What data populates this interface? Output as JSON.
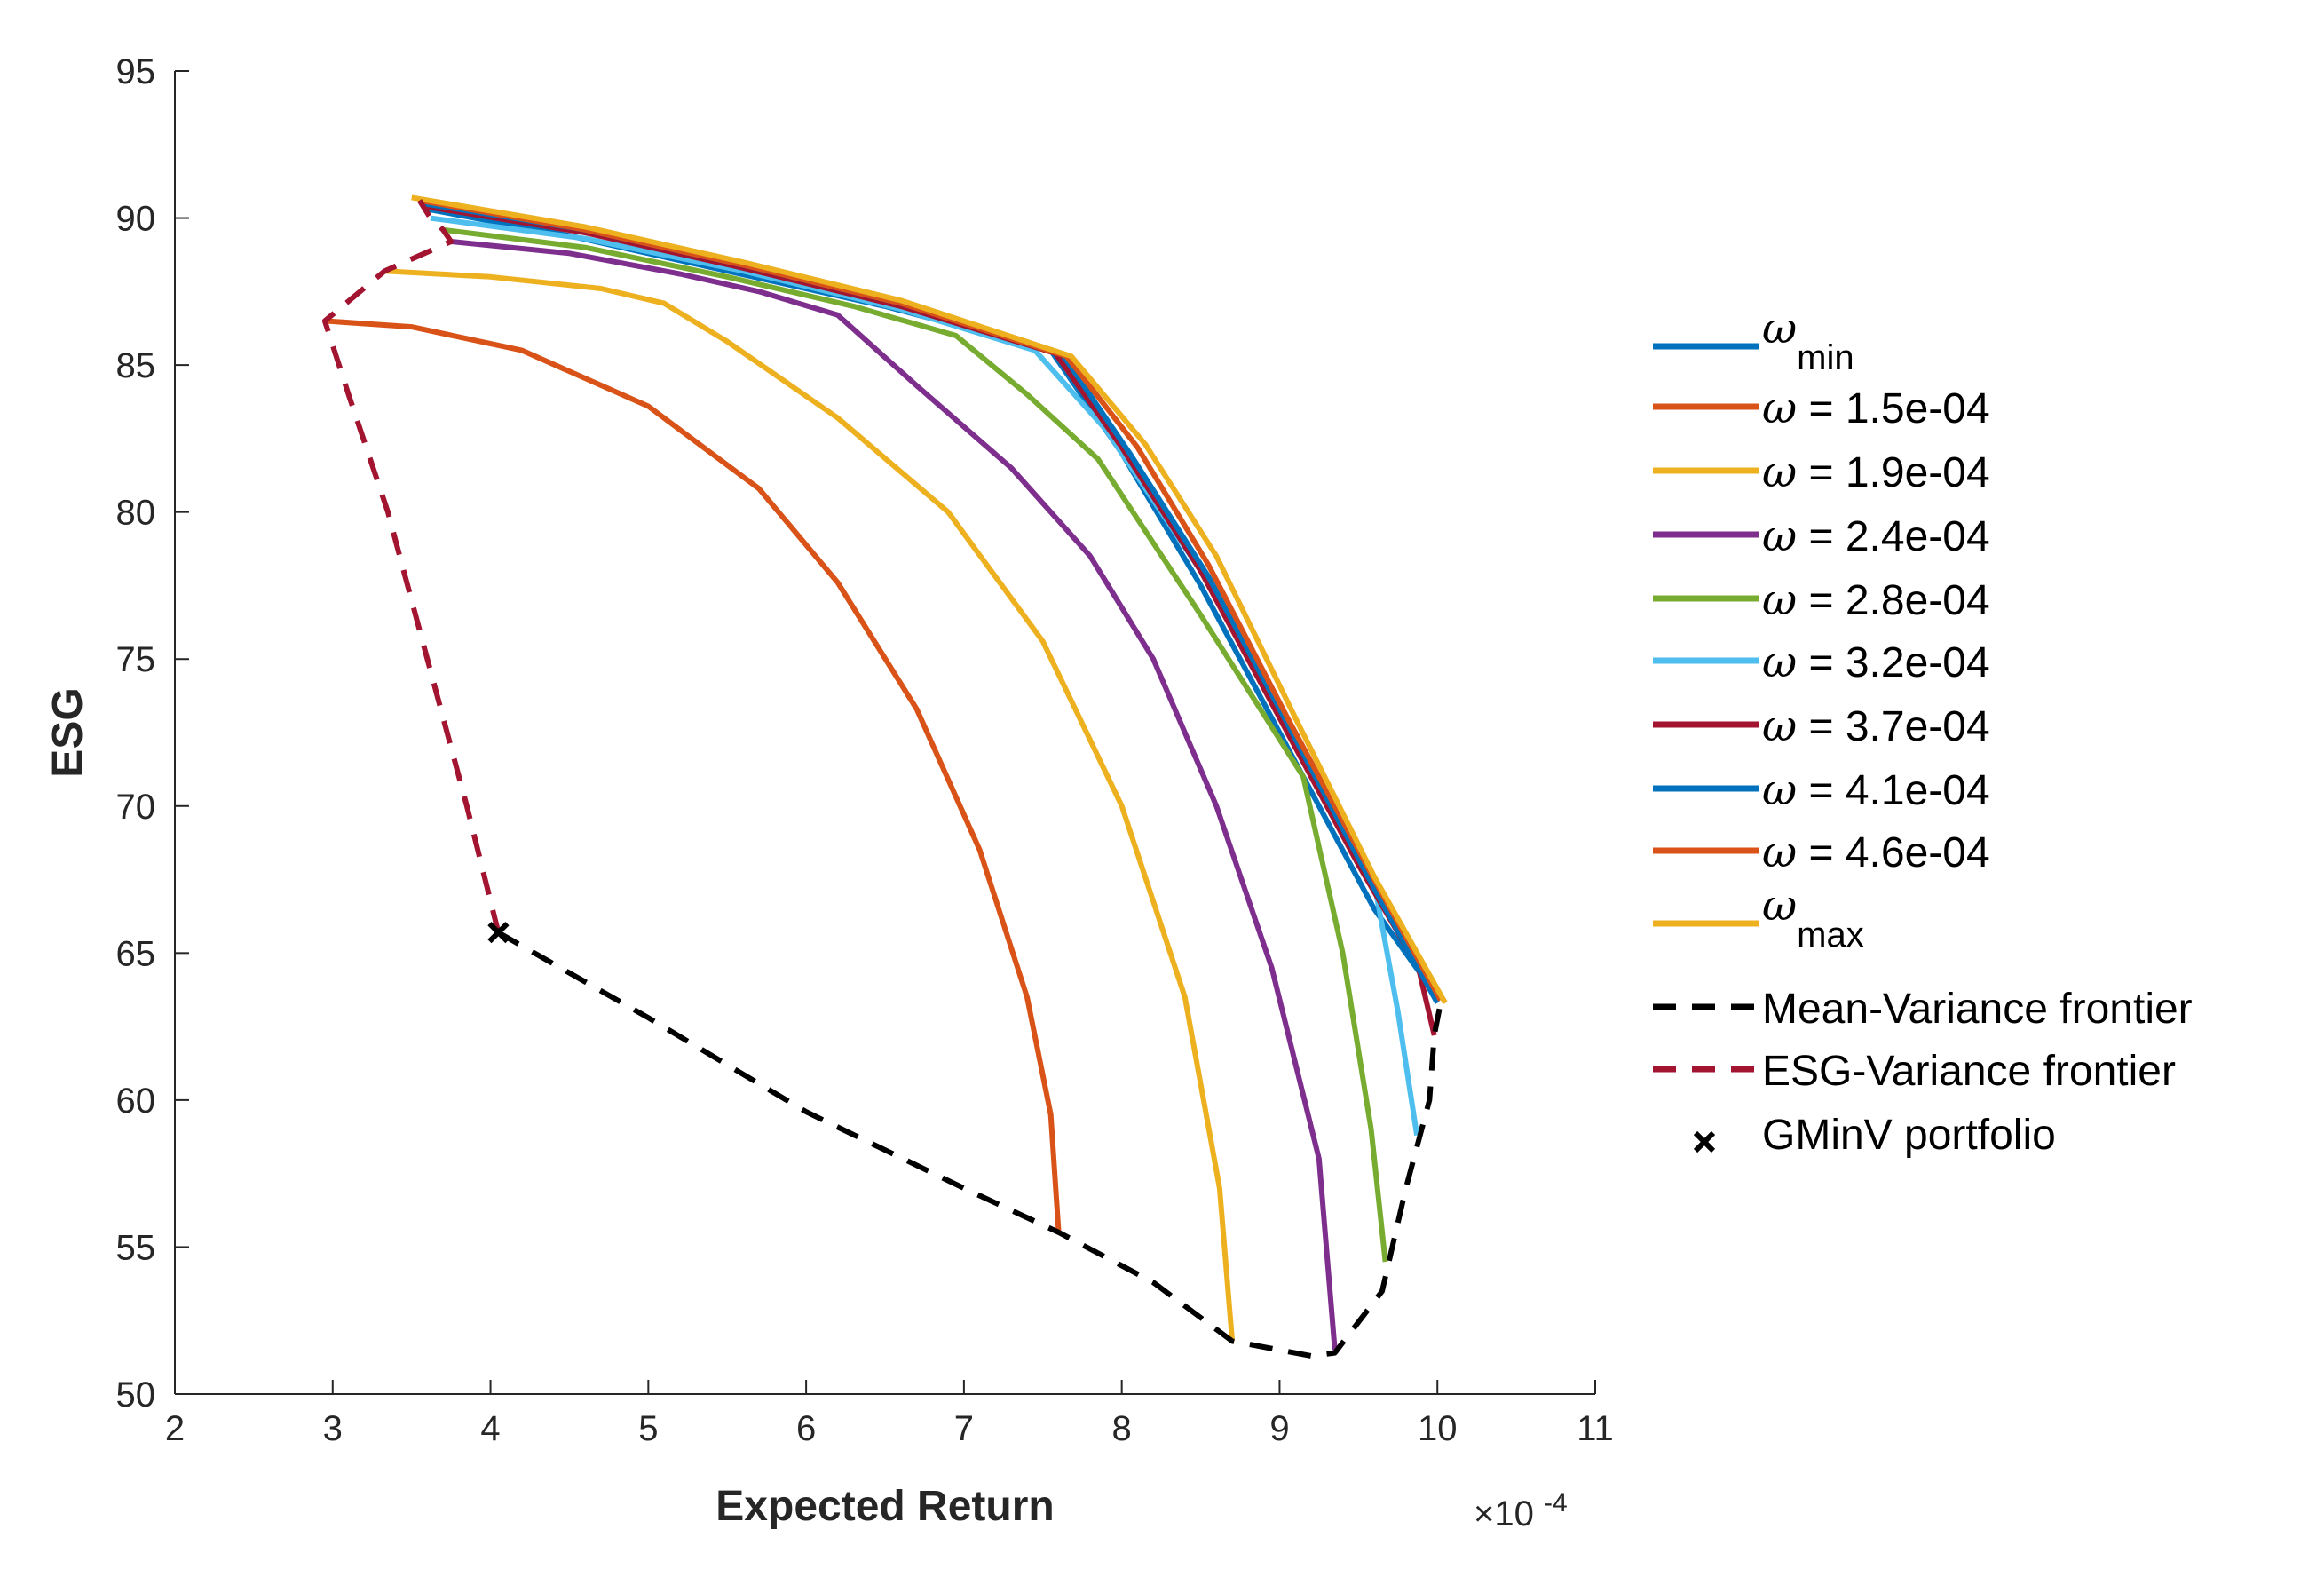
{
  "chart_data": {
    "type": "line",
    "title": "",
    "xlabel": "Expected Return",
    "ylabel": "ESG",
    "x_exponent_label": "×10",
    "x_exponent_power": "-4",
    "xlim": [
      2,
      11
    ],
    "ylim": [
      50,
      95
    ],
    "xticks": [
      2,
      3,
      4,
      5,
      6,
      7,
      8,
      9,
      10,
      11
    ],
    "yticks": [
      50,
      55,
      60,
      65,
      70,
      75,
      80,
      85,
      90,
      95
    ],
    "grid": false,
    "legend_position": "right",
    "series": [
      {
        "name": "ω_min",
        "label_main": "ω",
        "label_sub": "min",
        "color": "#0072BD",
        "style": "solid",
        "points": [
          [
            3.6,
            90.3
          ],
          [
            4.5,
            89.4
          ],
          [
            5.5,
            88.2
          ],
          [
            6.5,
            87.0
          ],
          [
            7.55,
            85.5
          ],
          [
            8.0,
            82.0
          ],
          [
            8.5,
            77.5
          ],
          [
            9.0,
            72.5
          ],
          [
            9.6,
            66.5
          ],
          [
            10.0,
            63.5
          ]
        ]
      },
      {
        "name": "ω = 1.5e-04",
        "label_main": "ω = 1.5e-04",
        "label_sub": "",
        "color": "#D95319",
        "style": "solid",
        "points": [
          [
            2.95,
            86.5
          ],
          [
            3.5,
            86.3
          ],
          [
            4.2,
            85.5
          ],
          [
            5.0,
            83.6
          ],
          [
            5.7,
            80.8
          ],
          [
            6.2,
            77.6
          ],
          [
            6.7,
            73.3
          ],
          [
            7.1,
            68.5
          ],
          [
            7.4,
            63.5
          ],
          [
            7.55,
            59.5
          ],
          [
            7.6,
            55.5
          ]
        ]
      },
      {
        "name": "ω = 1.9e-04",
        "label_main": "ω = 1.9e-04",
        "label_sub": "",
        "color": "#EDB120",
        "style": "solid",
        "points": [
          [
            3.33,
            88.2
          ],
          [
            4.0,
            88.0
          ],
          [
            4.7,
            87.6
          ],
          [
            5.1,
            87.1
          ],
          [
            5.5,
            85.8
          ],
          [
            6.2,
            83.2
          ],
          [
            6.9,
            80.0
          ],
          [
            7.5,
            75.6
          ],
          [
            8.0,
            70.0
          ],
          [
            8.4,
            63.5
          ],
          [
            8.62,
            57.0
          ],
          [
            8.7,
            51.8
          ]
        ]
      },
      {
        "name": "ω = 2.4e-04",
        "label_main": "ω = 2.4e-04",
        "label_sub": "",
        "color": "#7E2F8E",
        "style": "solid",
        "points": [
          [
            3.75,
            89.2
          ],
          [
            4.5,
            88.8
          ],
          [
            5.2,
            88.1
          ],
          [
            5.7,
            87.5
          ],
          [
            6.2,
            86.7
          ],
          [
            6.7,
            84.3
          ],
          [
            7.3,
            81.5
          ],
          [
            7.8,
            78.5
          ],
          [
            8.2,
            75.0
          ],
          [
            8.6,
            70.0
          ],
          [
            8.95,
            64.5
          ],
          [
            9.25,
            58.0
          ],
          [
            9.35,
            51.5
          ]
        ]
      },
      {
        "name": "ω = 2.8e-04",
        "label_main": "ω = 2.8e-04",
        "label_sub": "",
        "color": "#77AC30",
        "style": "solid",
        "points": [
          [
            3.7,
            89.6
          ],
          [
            4.6,
            89.0
          ],
          [
            5.5,
            88.0
          ],
          [
            6.3,
            87.0
          ],
          [
            6.95,
            86.0
          ],
          [
            7.4,
            84.0
          ],
          [
            7.85,
            81.8
          ],
          [
            8.5,
            76.5
          ],
          [
            9.15,
            71.0
          ],
          [
            9.4,
            65.0
          ],
          [
            9.58,
            59.0
          ],
          [
            9.67,
            54.5
          ]
        ]
      },
      {
        "name": "ω = 3.2e-04",
        "label_main": "ω = 3.2e-04",
        "label_sub": "",
        "color": "#4DBEEE",
        "style": "solid",
        "points": [
          [
            3.62,
            90.0
          ],
          [
            4.6,
            89.3
          ],
          [
            5.6,
            88.2
          ],
          [
            6.6,
            86.9
          ],
          [
            7.45,
            85.5
          ],
          [
            7.9,
            82.8
          ],
          [
            8.5,
            78.0
          ],
          [
            9.1,
            72.5
          ],
          [
            9.6,
            67.4
          ],
          [
            9.75,
            63.0
          ],
          [
            9.87,
            58.8
          ]
        ]
      },
      {
        "name": "ω = 3.7e-04",
        "label_main": "ω = 3.7e-04",
        "label_sub": "",
        "color": "#A2142F",
        "style": "solid",
        "points": [
          [
            3.58,
            90.4
          ],
          [
            4.6,
            89.5
          ],
          [
            5.6,
            88.3
          ],
          [
            6.6,
            87.0
          ],
          [
            7.58,
            85.4
          ],
          [
            8.0,
            82.2
          ],
          [
            8.5,
            78.0
          ],
          [
            9.0,
            73.0
          ],
          [
            9.5,
            68.0
          ],
          [
            9.88,
            64.5
          ],
          [
            9.98,
            62.2
          ]
        ]
      },
      {
        "name": "ω = 4.1e-04",
        "label_main": "ω = 4.1e-04",
        "label_sub": "",
        "color": "#0072BD",
        "style": "solid",
        "points": [
          [
            3.57,
            90.5
          ],
          [
            4.6,
            89.6
          ],
          [
            5.6,
            88.4
          ],
          [
            6.6,
            87.1
          ],
          [
            7.62,
            85.4
          ],
          [
            8.05,
            82.0
          ],
          [
            8.55,
            77.8
          ],
          [
            9.05,
            72.8
          ],
          [
            9.6,
            67.2
          ],
          [
            10.0,
            63.3
          ]
        ]
      },
      {
        "name": "ω = 4.6e-04",
        "label_main": "ω = 4.6e-04",
        "label_sub": "",
        "color": "#D95319",
        "style": "solid",
        "points": [
          [
            3.55,
            90.6
          ],
          [
            4.6,
            89.6
          ],
          [
            5.6,
            88.4
          ],
          [
            6.6,
            87.1
          ],
          [
            7.65,
            85.3
          ],
          [
            8.1,
            82.2
          ],
          [
            8.55,
            78.2
          ],
          [
            9.05,
            73.0
          ],
          [
            9.6,
            67.5
          ],
          [
            10.02,
            63.4
          ]
        ]
      },
      {
        "name": "ω_max",
        "label_main": "ω",
        "label_sub": "max",
        "color": "#EDB120",
        "style": "solid",
        "points": [
          [
            3.5,
            90.7
          ],
          [
            4.6,
            89.7
          ],
          [
            5.6,
            88.5
          ],
          [
            6.6,
            87.2
          ],
          [
            7.68,
            85.3
          ],
          [
            8.15,
            82.3
          ],
          [
            8.6,
            78.5
          ],
          [
            9.1,
            73.0
          ],
          [
            9.6,
            67.6
          ],
          [
            10.05,
            63.3
          ]
        ]
      },
      {
        "name": "Mean-Variance frontier",
        "label_main": "Mean-Variance frontier",
        "label_sub": "",
        "color": "#000000",
        "style": "dashed",
        "points": [
          [
            4.05,
            65.7
          ],
          [
            5.0,
            62.8
          ],
          [
            6.0,
            59.6
          ],
          [
            7.0,
            57.0
          ],
          [
            7.6,
            55.5
          ],
          [
            8.2,
            53.8
          ],
          [
            8.7,
            51.8
          ],
          [
            9.2,
            51.3
          ],
          [
            9.35,
            51.4
          ],
          [
            9.65,
            53.5
          ],
          [
            9.8,
            57.0
          ],
          [
            9.95,
            60.0
          ],
          [
            9.98,
            62.2
          ],
          [
            10.02,
            63.3
          ]
        ]
      },
      {
        "name": "ESG-Variance frontier",
        "label_main": "ESG-Variance frontier",
        "label_sub": "",
        "color": "#A2142F",
        "style": "dashed",
        "points": [
          [
            4.05,
            65.7
          ],
          [
            3.85,
            70.0
          ],
          [
            3.6,
            75.0
          ],
          [
            3.35,
            80.0
          ],
          [
            3.1,
            84.0
          ],
          [
            2.95,
            86.5
          ],
          [
            3.33,
            88.2
          ],
          [
            3.75,
            89.2
          ],
          [
            3.7,
            89.6
          ],
          [
            3.62,
            90.0
          ],
          [
            3.55,
            90.6
          ]
        ]
      },
      {
        "name": "GMinV portfolio",
        "label_main": "GMinV portfolio",
        "label_sub": "",
        "color": "#000000",
        "style": "marker",
        "points": [
          [
            4.05,
            65.7
          ]
        ]
      }
    ]
  }
}
